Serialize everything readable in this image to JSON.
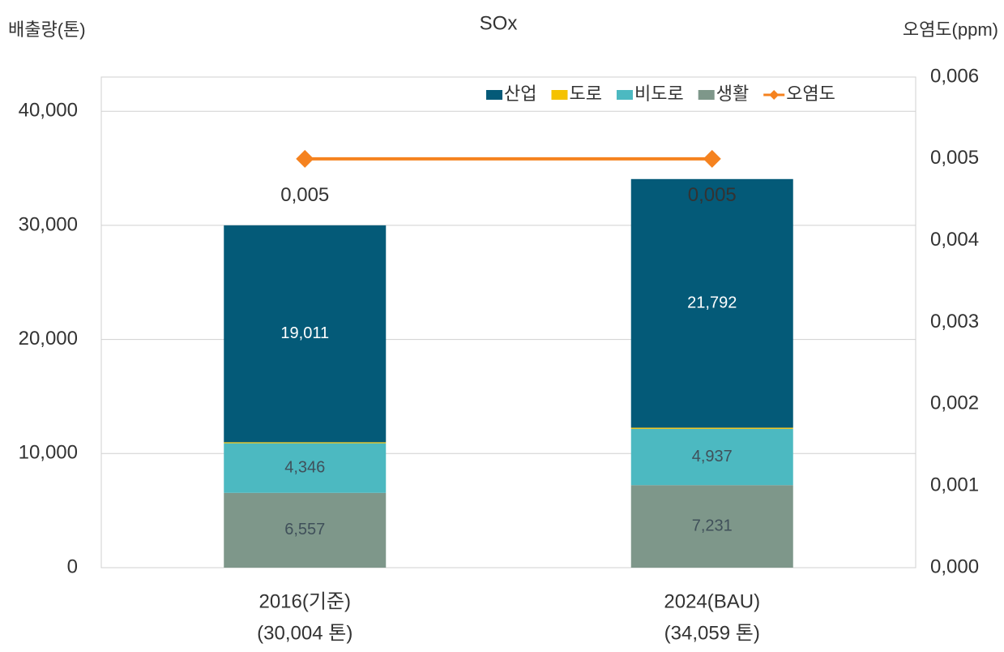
{
  "chart_data": {
    "type": "stacked-bar-line",
    "title": "SOx",
    "y_label": "배출량(톤)",
    "y2_label": "오염도(ppm)",
    "categories": [
      "2016(기준)",
      "2024(BAU)"
    ],
    "category_sublabels": [
      "(30,004 톤)",
      "(34,059 톤)"
    ],
    "series": [
      {
        "name": "산업",
        "color": "#045a78",
        "values": [
          19011,
          21792
        ],
        "value_labels": [
          "19,011",
          "21,792"
        ],
        "label_color": "#ffffff"
      },
      {
        "name": "도로",
        "color": "#f5c200",
        "values": [
          90,
          99
        ],
        "label_color": "#ffffff"
      },
      {
        "name": "비도로",
        "color": "#4cb9c1",
        "values": [
          4346,
          4937
        ],
        "value_labels": [
          "4,346",
          "4,937"
        ],
        "label_color": "#40505a"
      },
      {
        "name": "생활",
        "color": "#7e978a",
        "values": [
          6557,
          7231
        ],
        "value_labels": [
          "6,557",
          "7,231"
        ],
        "label_color": "#40505a"
      },
      {
        "name": "오염도",
        "type": "line",
        "axis": "y2",
        "color": "#f5821f",
        "values": [
          0.005,
          0.005
        ],
        "value_labels": [
          "0,005",
          "0,005"
        ]
      }
    ],
    "ylim": [
      0,
      43000
    ],
    "yticks": [
      0,
      {
        "value": 10000,
        "label": "10,000"
      },
      {
        "value": 20000,
        "label": "20,000"
      },
      {
        "value": 30000,
        "label": "30,000"
      },
      {
        "value": 40000,
        "label": "40,000"
      }
    ],
    "y2lim": [
      0,
      0.006
    ],
    "y2ticks": [
      {
        "value": 0,
        "label": "0,000"
      },
      {
        "value": 0.001,
        "label": "0,001"
      },
      {
        "value": 0.002,
        "label": "0,002"
      },
      {
        "value": 0.003,
        "label": "0,003"
      },
      {
        "value": 0.004,
        "label": "0,004"
      },
      {
        "value": 0.005,
        "label": "0,005"
      },
      {
        "value": 0.006,
        "label": "0,006"
      }
    ],
    "grid": true,
    "legend": "top-right"
  }
}
